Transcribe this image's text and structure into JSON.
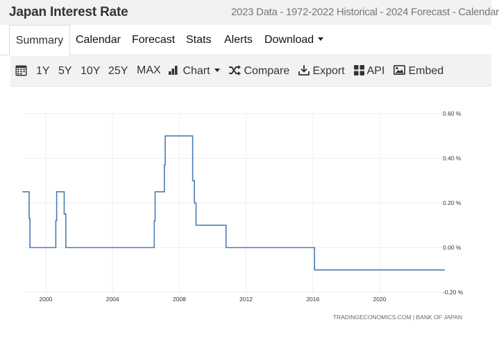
{
  "header": {
    "title": "Japan Interest Rate",
    "subtitle": "2023 Data - 1972-2022 Historical - 2024 Forecast - Calendar"
  },
  "tabs": [
    {
      "label": "Summary",
      "active": true
    },
    {
      "label": "Calendar"
    },
    {
      "label": "Forecast"
    },
    {
      "label": "Stats"
    },
    {
      "label": "Alerts"
    },
    {
      "label": "Download",
      "has_caret": true
    }
  ],
  "toolbar": {
    "calendar_icon": "calendar-icon",
    "ranges": [
      "1Y",
      "5Y",
      "10Y",
      "25Y",
      "MAX"
    ],
    "chart_label": "Chart",
    "compare_label": "Compare",
    "export_label": "Export",
    "api_label": "API",
    "embed_label": "Embed"
  },
  "chart_data": {
    "type": "line",
    "line_color": "#4a7ab5",
    "grid": true,
    "xlim": [
      1998.6,
      2023.9
    ],
    "ylim": [
      -0.2,
      0.6
    ],
    "x_ticks": [
      2000,
      2004,
      2008,
      2012,
      2016,
      2020
    ],
    "y_ticks": [
      0.6,
      0.4,
      0.2,
      0.0,
      -0.2
    ],
    "y_tick_labels": [
      "0.60 %",
      "0.40 %",
      "0.20 %",
      "0.00 %",
      "-0.20 %"
    ],
    "source": "TRADINGECONOMICS.COM | BANK OF JAPAN",
    "series": [
      {
        "x": [
          1998.6,
          1999.0,
          1999.0,
          1999.05,
          1999.05,
          2000.6,
          2000.6,
          2000.65,
          2000.65,
          2001.1,
          2001.1,
          2001.2,
          2001.2,
          2006.5,
          2006.5,
          2006.55,
          2006.55,
          2007.1,
          2007.1,
          2007.15,
          2007.15,
          2008.8,
          2008.8,
          2008.9,
          2008.9,
          2009.0,
          2009.0,
          2010.8,
          2010.8,
          2016.1,
          2016.1,
          2023.9
        ],
        "y": [
          0.25,
          0.25,
          0.13,
          0.13,
          0.0,
          0.0,
          0.12,
          0.12,
          0.25,
          0.25,
          0.15,
          0.15,
          0.0,
          0.0,
          0.12,
          0.12,
          0.25,
          0.25,
          0.37,
          0.37,
          0.5,
          0.5,
          0.3,
          0.3,
          0.2,
          0.2,
          0.1,
          0.1,
          0.0,
          0.0,
          -0.1,
          -0.1
        ]
      }
    ]
  }
}
